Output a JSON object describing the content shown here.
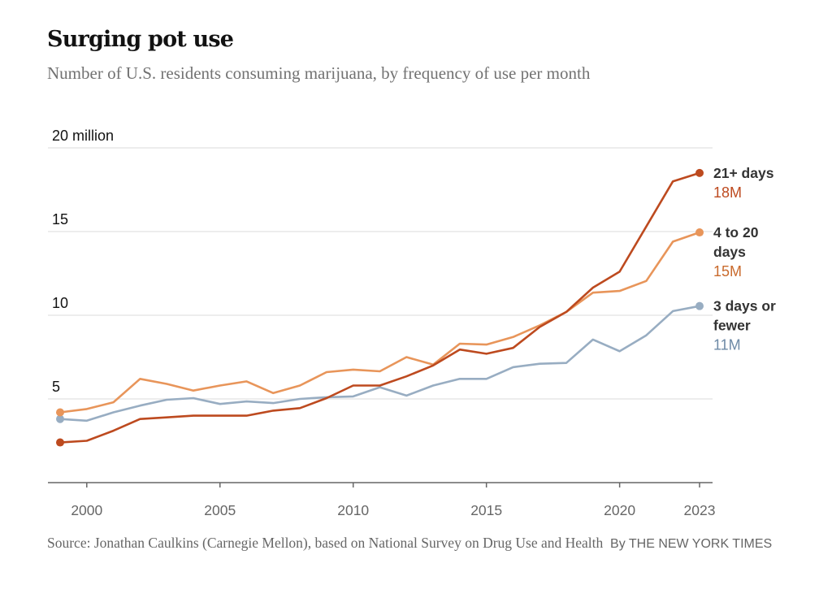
{
  "header": {
    "title": "Surging pot use",
    "subtitle": "Number of U.S. residents consuming marijuana, by frequency of use per month"
  },
  "footer": {
    "source": "Source: Jonathan Caulkins (Carnegie Mellon), based on National Survey on Drug Use and Health",
    "byline": "By THE NEW YORK TIMES"
  },
  "chart_data": {
    "type": "line",
    "title": "Surging pot use",
    "subtitle": "Number of U.S. residents consuming marijuana, by frequency of use per month",
    "xlabel": "",
    "ylabel": "",
    "x": [
      1999,
      2000,
      2001,
      2002,
      2003,
      2004,
      2005,
      2006,
      2007,
      2008,
      2009,
      2010,
      2011,
      2012,
      2013,
      2014,
      2015,
      2016,
      2017,
      2018,
      2019,
      2020,
      2021,
      2022,
      2023
    ],
    "xlim": [
      1999,
      2023
    ],
    "ylim": [
      0,
      20
    ],
    "y_unit": "million",
    "x_ticks": [
      {
        "value": 2000,
        "label": "2000"
      },
      {
        "value": 2005,
        "label": "2005"
      },
      {
        "value": 2010,
        "label": "2010"
      },
      {
        "value": 2015,
        "label": "2015"
      },
      {
        "value": 2020,
        "label": "2020"
      },
      {
        "value": 2023,
        "label": "2023"
      }
    ],
    "y_ticks": [
      {
        "value": 5,
        "label": "5"
      },
      {
        "value": 10,
        "label": "10"
      },
      {
        "value": 15,
        "label": "15"
      },
      {
        "value": 20,
        "label": "20 million"
      }
    ],
    "grid": true,
    "legend": "direct-labels-right",
    "series": [
      {
        "name": "21+ days",
        "end_label": "18M",
        "color": "#bd4a1f",
        "label_color": "#bd4a1f",
        "name_lines": [
          "21+ days"
        ],
        "values": [
          2.4,
          2.5,
          3.1,
          3.8,
          3.9,
          4.0,
          4.0,
          4.0,
          4.3,
          4.45,
          5.05,
          5.8,
          5.8,
          6.35,
          7.0,
          7.95,
          7.7,
          8.05,
          9.3,
          10.2,
          11.65,
          12.6,
          15.3,
          18.0,
          18.5
        ]
      },
      {
        "name": "4 to 20 days",
        "end_label": "15M",
        "color": "#e8955a",
        "label_color": "#c96a2c",
        "name_lines": [
          "4 to 20",
          "days"
        ],
        "values": [
          4.2,
          4.4,
          4.8,
          6.2,
          5.9,
          5.5,
          5.8,
          6.05,
          5.35,
          5.8,
          6.6,
          6.75,
          6.65,
          7.5,
          7.05,
          8.3,
          8.25,
          8.7,
          9.4,
          10.2,
          11.35,
          11.45,
          12.05,
          14.4,
          14.95
        ]
      },
      {
        "name": "3 days or fewer",
        "end_label": "11M",
        "color": "#98adc2",
        "label_color": "#6e8aa6",
        "name_lines": [
          "3 days or",
          "fewer"
        ],
        "values": [
          3.8,
          3.7,
          4.2,
          4.6,
          4.95,
          5.05,
          4.7,
          4.85,
          4.75,
          5.0,
          5.1,
          5.15,
          5.7,
          5.2,
          5.8,
          6.2,
          6.2,
          6.9,
          7.1,
          7.15,
          8.55,
          7.85,
          8.8,
          10.25,
          10.55
        ]
      }
    ]
  }
}
